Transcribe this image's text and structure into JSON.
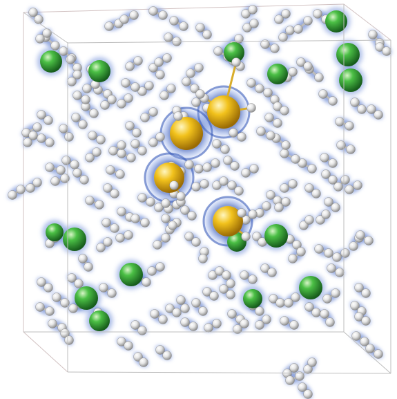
{
  "scene": {
    "description_type": "molecular-dynamics-snapshot",
    "colors": {
      "background": "#ffffff",
      "box_edge_front": "#b7b7b7",
      "box_edge_back": "#d9c5c5",
      "density_halo": "#2f56b8",
      "hydrogen": "#e4e4e4",
      "bond": "#b9b9b9",
      "green_atom": "#37a63c",
      "yellow_atom": "#e7b81a",
      "yellow_bond": "#d9ad2a"
    }
  }
}
